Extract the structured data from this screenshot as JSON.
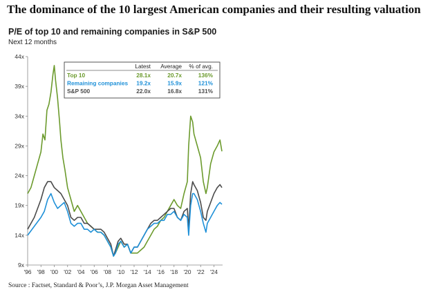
{
  "headline": "The dominance of the 10 largest American companies and their resulting valuation",
  "source": "Source : Factset, Standard & Poor’s, J.P. Morgan Asset Management",
  "chart_data": {
    "type": "line",
    "title": "P/E of top 10 and remaining companies in S&P 500",
    "subtitle": "Next 12 months",
    "ylim": [
      9,
      44
    ],
    "y_ticks": [
      "44x",
      "39x",
      "34x",
      "29x",
      "24x",
      "19x",
      "14x",
      "9x"
    ],
    "x_ticks": [
      "'96",
      "'98",
      "'00",
      "'02",
      "'04",
      "'06",
      "'08",
      "'10",
      "'12",
      "'14",
      "'16",
      "'18",
      "'20",
      "'22",
      "'24"
    ],
    "xlim": [
      1996,
      2025.3
    ],
    "grid": false,
    "legend_table": {
      "headers": [
        "",
        "Latest",
        "Average",
        "% of avg."
      ],
      "rows": [
        {
          "label": "Top 10",
          "latest": "28.1x",
          "average": "20.7x",
          "pct": "136%",
          "color": "#6b9a2c"
        },
        {
          "label": "Remaining companies",
          "latest": "19.2x",
          "average": "15.9x",
          "pct": "121%",
          "color": "#1e90d8"
        },
        {
          "label": "S&P 500",
          "latest": "22.0x",
          "average": "16.8x",
          "pct": "131%",
          "color": "#4a4a4a"
        }
      ]
    },
    "series": [
      {
        "name": "Top 10",
        "color": "#6b9a2c",
        "x": [
          1996.0,
          1996.5,
          1997.0,
          1997.5,
          1998.0,
          1998.3,
          1998.6,
          1998.9,
          1999.2,
          1999.5,
          1999.8,
          2000.0,
          2000.2,
          2000.5,
          2000.8,
          2001.0,
          2001.3,
          2001.6,
          2002.0,
          2002.5,
          2003.0,
          2003.5,
          2004.0,
          2004.5,
          2005.0,
          2005.5,
          2006.0,
          2006.5,
          2007.0,
          2007.5,
          2008.0,
          2008.5,
          2008.9,
          2009.2,
          2009.6,
          2010.0,
          2010.5,
          2011.0,
          2011.5,
          2012.0,
          2012.5,
          2013.0,
          2013.5,
          2014.0,
          2014.5,
          2015.0,
          2015.5,
          2016.0,
          2016.5,
          2017.0,
          2017.5,
          2018.0,
          2018.5,
          2019.0,
          2019.5,
          2020.0,
          2020.2,
          2020.5,
          2020.8,
          2021.0,
          2021.5,
          2022.0,
          2022.4,
          2022.8,
          2023.0,
          2023.5,
          2024.0,
          2024.5,
          2024.9,
          2025.2
        ],
        "values": [
          21.0,
          22.0,
          24.0,
          26.0,
          28.0,
          31.0,
          30.0,
          35.0,
          36.0,
          38.0,
          41.0,
          42.5,
          40.0,
          37.0,
          33.0,
          30.0,
          27.0,
          25.0,
          22.0,
          20.0,
          18.0,
          19.0,
          18.0,
          17.0,
          16.0,
          15.5,
          15.0,
          14.5,
          14.5,
          14.0,
          13.0,
          12.0,
          10.5,
          11.0,
          12.0,
          13.0,
          12.0,
          12.5,
          11.0,
          11.0,
          11.0,
          11.5,
          12.0,
          13.0,
          14.0,
          15.0,
          15.5,
          16.5,
          17.0,
          18.0,
          19.0,
          20.0,
          19.0,
          18.5,
          21.0,
          23.0,
          29.0,
          34.0,
          33.0,
          31.0,
          29.0,
          27.0,
          23.0,
          21.0,
          22.0,
          26.0,
          28.0,
          29.0,
          30.0,
          28.1
        ]
      },
      {
        "name": "Remaining companies",
        "color": "#1e90d8",
        "x": [
          1996.0,
          1997.0,
          1998.0,
          1998.5,
          1999.0,
          1999.5,
          2000.0,
          2000.5,
          2001.0,
          2001.5,
          2002.0,
          2002.5,
          2003.0,
          2003.5,
          2004.0,
          2004.5,
          2005.0,
          2005.5,
          2006.0,
          2006.5,
          2007.0,
          2007.5,
          2008.0,
          2008.5,
          2008.9,
          2009.2,
          2009.6,
          2010.0,
          2010.5,
          2011.0,
          2011.5,
          2012.0,
          2012.5,
          2013.0,
          2013.5,
          2014.0,
          2014.5,
          2015.0,
          2015.5,
          2016.0,
          2016.5,
          2017.0,
          2017.5,
          2018.0,
          2018.5,
          2019.0,
          2019.5,
          2020.0,
          2020.2,
          2020.5,
          2020.8,
          2021.0,
          2021.5,
          2022.0,
          2022.4,
          2022.8,
          2023.0,
          2023.5,
          2024.0,
          2024.5,
          2024.9,
          2025.2
        ],
        "values": [
          14.0,
          15.5,
          17.0,
          18.0,
          20.0,
          21.0,
          19.5,
          18.5,
          19.0,
          19.5,
          18.0,
          16.0,
          15.5,
          16.0,
          16.0,
          15.0,
          15.0,
          14.5,
          15.0,
          14.5,
          14.5,
          14.0,
          13.0,
          12.0,
          10.5,
          11.0,
          12.5,
          13.0,
          12.0,
          12.5,
          11.0,
          12.0,
          12.0,
          13.0,
          14.0,
          15.0,
          15.5,
          16.0,
          16.0,
          16.5,
          16.5,
          17.5,
          17.5,
          18.0,
          17.0,
          16.5,
          17.5,
          17.0,
          14.0,
          19.0,
          21.0,
          21.0,
          20.0,
          18.0,
          16.0,
          14.5,
          16.0,
          17.0,
          18.0,
          19.0,
          19.5,
          19.2
        ]
      },
      {
        "name": "S&P 500",
        "color": "#4a4a4a",
        "x": [
          1996.0,
          1997.0,
          1998.0,
          1998.5,
          1999.0,
          1999.5,
          2000.0,
          2000.5,
          2001.0,
          2001.5,
          2002.0,
          2002.5,
          2003.0,
          2003.5,
          2004.0,
          2004.5,
          2005.0,
          2005.5,
          2006.0,
          2006.5,
          2007.0,
          2007.5,
          2008.0,
          2008.5,
          2008.9,
          2009.2,
          2009.6,
          2010.0,
          2010.5,
          2011.0,
          2011.5,
          2012.0,
          2012.5,
          2013.0,
          2013.5,
          2014.0,
          2014.5,
          2015.0,
          2015.5,
          2016.0,
          2016.5,
          2017.0,
          2017.5,
          2018.0,
          2018.5,
          2019.0,
          2019.5,
          2020.0,
          2020.2,
          2020.5,
          2020.8,
          2021.0,
          2021.5,
          2022.0,
          2022.4,
          2022.8,
          2023.0,
          2023.5,
          2024.0,
          2024.5,
          2024.9,
          2025.2
        ],
        "values": [
          15.0,
          17.0,
          20.0,
          22.0,
          23.0,
          23.0,
          22.0,
          21.5,
          21.0,
          20.0,
          19.0,
          17.0,
          16.5,
          17.0,
          17.0,
          16.0,
          16.0,
          15.5,
          15.0,
          15.0,
          15.0,
          14.5,
          13.5,
          12.5,
          10.5,
          11.5,
          13.0,
          13.5,
          12.5,
          12.5,
          11.0,
          12.0,
          12.0,
          13.0,
          14.0,
          15.0,
          16.0,
          16.5,
          16.5,
          17.0,
          17.5,
          18.0,
          18.5,
          18.5,
          17.0,
          16.5,
          18.0,
          18.5,
          15.0,
          21.0,
          23.0,
          22.5,
          21.5,
          19.5,
          17.0,
          16.5,
          18.0,
          19.5,
          21.0,
          22.0,
          22.5,
          22.0
        ]
      }
    ]
  }
}
